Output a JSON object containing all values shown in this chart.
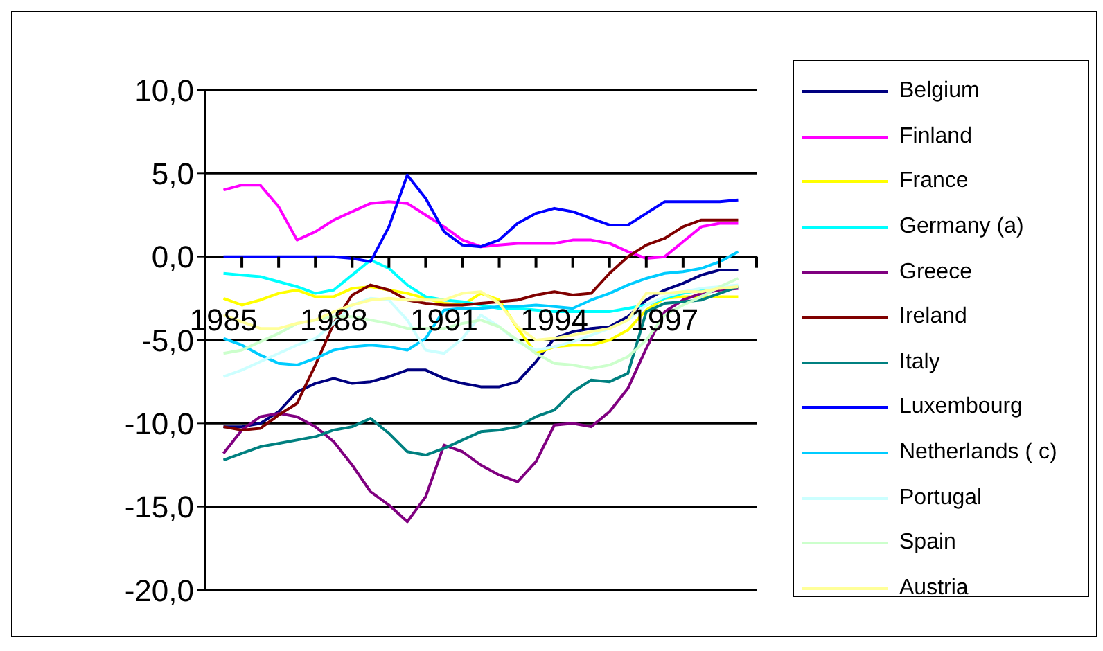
{
  "chart_data": {
    "type": "line",
    "x": [
      1985,
      1985.5,
      1986,
      1986.5,
      1987,
      1987.5,
      1988,
      1988.5,
      1989,
      1989.5,
      1990,
      1990.5,
      1991,
      1991.5,
      1992,
      1992.5,
      1993,
      1993.5,
      1994,
      1994.5,
      1995,
      1995.5,
      1996,
      1996.5,
      1997,
      1997.5,
      1998,
      1998.5,
      1999
    ],
    "xlim": [
      1984.5,
      1999.5
    ],
    "xticks": [
      {
        "value": 1984.5,
        "label": null
      },
      {
        "value": 1985,
        "label": "1985"
      },
      {
        "value": 1985.5,
        "label": null
      },
      {
        "value": 1986.5,
        "label": null
      },
      {
        "value": 1987.5,
        "label": null
      },
      {
        "value": 1988,
        "label": "1988"
      },
      {
        "value": 1988.5,
        "label": null
      },
      {
        "value": 1989.5,
        "label": null
      },
      {
        "value": 1990.5,
        "label": null
      },
      {
        "value": 1991,
        "label": "1991"
      },
      {
        "value": 1991.5,
        "label": null
      },
      {
        "value": 1992.5,
        "label": null
      },
      {
        "value": 1993.5,
        "label": null
      },
      {
        "value": 1994,
        "label": "1994"
      },
      {
        "value": 1994.5,
        "label": null
      },
      {
        "value": 1995.5,
        "label": null
      },
      {
        "value": 1996.5,
        "label": null
      },
      {
        "value": 1997,
        "label": "1997"
      },
      {
        "value": 1997.5,
        "label": null
      },
      {
        "value": 1998.5,
        "label": null
      },
      {
        "value": 1999.5,
        "label": null
      }
    ],
    "ylim": [
      -20,
      10
    ],
    "yticks": [
      {
        "value": -20,
        "label": "-20,0"
      },
      {
        "value": -15,
        "label": "-15,0"
      },
      {
        "value": -10,
        "label": "-10,0"
      },
      {
        "value": -5,
        "label": "-5,0"
      },
      {
        "value": 0,
        "label": "0,0"
      },
      {
        "value": 5,
        "label": "5,0"
      },
      {
        "value": 10,
        "label": "10,0"
      }
    ],
    "grid": "y",
    "legend": "right",
    "marker": "none",
    "line_style": "solid",
    "series": [
      {
        "name": "Belgium",
        "color": "#000080",
        "values": [
          -10.2,
          -10.2,
          -10.0,
          -9.3,
          -8.1,
          -7.6,
          -7.3,
          -7.6,
          -7.5,
          -7.2,
          -6.8,
          -6.8,
          -7.3,
          -7.6,
          -7.8,
          -7.8,
          -7.5,
          -6.3,
          -4.9,
          -4.5,
          -4.3,
          -4.2,
          -3.6,
          -2.6,
          -2.0,
          -1.6,
          -1.1,
          -0.8,
          -0.8
        ]
      },
      {
        "name": "Finland",
        "color": "#ff00ff",
        "values": [
          4.0,
          4.3,
          4.3,
          3.0,
          1.0,
          1.5,
          2.2,
          2.7,
          3.2,
          3.3,
          3.2,
          2.5,
          1.8,
          1.0,
          0.6,
          0.7,
          0.8,
          0.8,
          0.8,
          1.0,
          1.0,
          0.8,
          0.3,
          -0.1,
          0.0,
          0.9,
          1.8,
          2.0,
          2.0
        ]
      },
      {
        "name": "France",
        "color": "#ffff00",
        "values": [
          -2.5,
          -2.9,
          -2.6,
          -2.2,
          -2.0,
          -2.4,
          -2.4,
          -1.9,
          -1.8,
          -2.0,
          -2.2,
          -2.5,
          -2.8,
          -2.9,
          -2.2,
          -2.6,
          -4.3,
          -5.8,
          -5.4,
          -5.3,
          -5.3,
          -5.0,
          -4.4,
          -3.2,
          -2.5,
          -2.4,
          -2.4,
          -2.4,
          -2.4
        ]
      },
      {
        "name": "Germany (a)",
        "color": "#00ffff",
        "values": [
          -1.0,
          -1.1,
          -1.2,
          -1.5,
          -1.8,
          -2.2,
          -2.0,
          -1.1,
          -0.2,
          -0.7,
          -1.7,
          -2.4,
          -2.6,
          -2.7,
          -2.9,
          -3.1,
          -3.1,
          -3.2,
          -3.3,
          -3.3,
          -3.3,
          -3.3,
          -3.1,
          -2.9,
          -2.5,
          -2.2,
          -2.0,
          -1.9,
          -1.8
        ]
      },
      {
        "name": "Greece",
        "color": "#800080",
        "values": [
          -11.8,
          -10.4,
          -9.6,
          -9.4,
          -9.6,
          -10.2,
          -11.1,
          -12.5,
          -14.1,
          -14.9,
          -15.9,
          -14.4,
          -11.3,
          -11.7,
          -12.5,
          -13.1,
          -13.5,
          -12.3,
          -10.1,
          -10.0,
          -10.2,
          -9.3,
          -7.9,
          -5.5,
          -3.3,
          -2.6,
          -2.2,
          -2.0,
          -1.9
        ]
      },
      {
        "name": "Ireland",
        "color": "#800000",
        "values": [
          -10.2,
          -10.4,
          -10.3,
          -9.5,
          -8.8,
          -6.5,
          -4.0,
          -2.3,
          -1.7,
          -2.0,
          -2.6,
          -2.8,
          -2.9,
          -2.9,
          -2.8,
          -2.7,
          -2.6,
          -2.3,
          -2.1,
          -2.3,
          -2.2,
          -1.0,
          0.0,
          0.7,
          1.1,
          1.8,
          2.2,
          2.2,
          2.2
        ]
      },
      {
        "name": "Italy",
        "color": "#008080",
        "values": [
          -12.2,
          -11.8,
          -11.4,
          -11.2,
          -11.0,
          -10.8,
          -10.4,
          -10.2,
          -9.7,
          -10.6,
          -11.7,
          -11.9,
          -11.5,
          -11.0,
          -10.5,
          -10.4,
          -10.2,
          -9.6,
          -9.2,
          -8.1,
          -7.4,
          -7.5,
          -7.0,
          -3.3,
          -2.8,
          -2.7,
          -2.6,
          -2.2,
          -1.8
        ]
      },
      {
        "name": "Luxembourg",
        "color": "#0000ff",
        "values": [
          0,
          0,
          0,
          0,
          0,
          0,
          0,
          -0.1,
          -0.3,
          1.8,
          4.9,
          3.5,
          1.5,
          0.7,
          0.6,
          1.0,
          2.0,
          2.6,
          2.9,
          2.7,
          2.3,
          1.9,
          1.9,
          2.6,
          3.3,
          3.3,
          3.3,
          3.3,
          3.4
        ]
      },
      {
        "name": "Netherlands ( c)",
        "color": "#00ccff",
        "values": [
          -4.9,
          -5.3,
          -5.9,
          -6.4,
          -6.5,
          -6.1,
          -5.6,
          -5.4,
          -5.3,
          -5.4,
          -5.6,
          -4.9,
          -3.2,
          -3.1,
          -3.1,
          -3.0,
          -3.0,
          -2.9,
          -3.0,
          -3.1,
          -2.6,
          -2.2,
          -1.7,
          -1.3,
          -1.0,
          -0.9,
          -0.7,
          -0.3,
          0.3
        ]
      },
      {
        "name": "Portugal",
        "color": "#ccffff",
        "values": [
          -7.2,
          -6.8,
          -6.3,
          -5.8,
          -5.3,
          -4.9,
          -4.0,
          -2.9,
          -2.5,
          -2.6,
          -3.8,
          -5.6,
          -5.8,
          -4.9,
          -3.5,
          -4.2,
          -5.1,
          -5.6,
          -5.4,
          -5.1,
          -4.7,
          -4.3,
          -3.8,
          -2.9,
          -2.4,
          -2.1,
          -1.9,
          -1.8,
          -1.7
        ]
      },
      {
        "name": "Spain",
        "color": "#ccffcc",
        "values": [
          -5.8,
          -5.6,
          -5.1,
          -4.6,
          -4.0,
          -3.8,
          -3.6,
          -3.6,
          -3.8,
          -4.0,
          -4.3,
          -4.3,
          -4.3,
          -4.0,
          -3.8,
          -4.2,
          -5.0,
          -5.8,
          -6.4,
          -6.5,
          -6.7,
          -6.5,
          -6.0,
          -5.0,
          -3.5,
          -2.9,
          -2.4,
          -1.8,
          -1.3
        ]
      },
      {
        "name": "Austria",
        "color": "#ffff99",
        "values": [
          -3.5,
          -3.9,
          -4.3,
          -4.3,
          -4.0,
          -3.8,
          -3.3,
          -2.9,
          -2.6,
          -2.5,
          -2.6,
          -2.6,
          -2.6,
          -2.2,
          -2.1,
          -2.8,
          -4.2,
          -5.0,
          -4.9,
          -4.7,
          -4.5,
          -4.3,
          -3.8,
          -2.2,
          -2.2,
          -2.1,
          -2.1,
          -1.9,
          -1.8
        ]
      }
    ]
  }
}
